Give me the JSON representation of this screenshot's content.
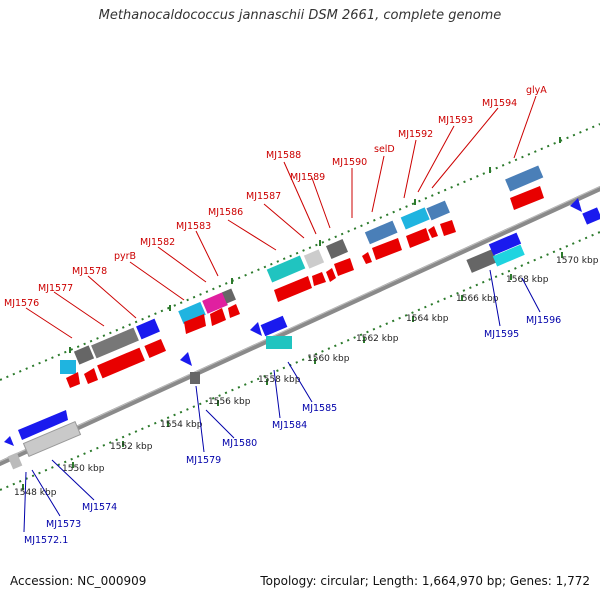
{
  "title": "Methanocaldococcus jannaschii DSM 2661, complete genome",
  "footer": {
    "accession": "Accession: NC_000909",
    "stats": "Topology: circular; Length: 1,664,970 bp; Genes: 1,772"
  },
  "scale_labels": [
    "1548 kbp",
    "1550 kbp",
    "1552 kbp",
    "1554 kbp",
    "1556 kbp",
    "1558 kbp",
    "1560 kbp",
    "1562 kbp",
    "1564 kbp",
    "1566 kbp",
    "1568 kbp",
    "1570 kbp"
  ],
  "top_labels": [
    "MJ1576",
    "MJ1577",
    "MJ1578",
    "pyrB",
    "MJ1582",
    "MJ1583",
    "MJ1586",
    "MJ1587",
    "MJ1588",
    "MJ1589",
    "MJ1590",
    "selD",
    "MJ1592",
    "MJ1593",
    "MJ1594",
    "glyA"
  ],
  "bottom_labels": [
    "MJ1572.1",
    "MJ1573",
    "MJ1574",
    "MJ1579",
    "MJ1580",
    "MJ1584",
    "MJ1585",
    "MJ1595",
    "MJ1596"
  ],
  "colors": {
    "forward_cds": "#e80000",
    "reverse_cds": "#1a1aee",
    "backbone": "#8a8a8a",
    "ticks": "#2c7a2c",
    "cyan": "#1fb4e0",
    "teal": "#20c4c0",
    "grey": "#777777",
    "magenta": "#e0209a",
    "steelblue": "#4a7fb8"
  }
}
